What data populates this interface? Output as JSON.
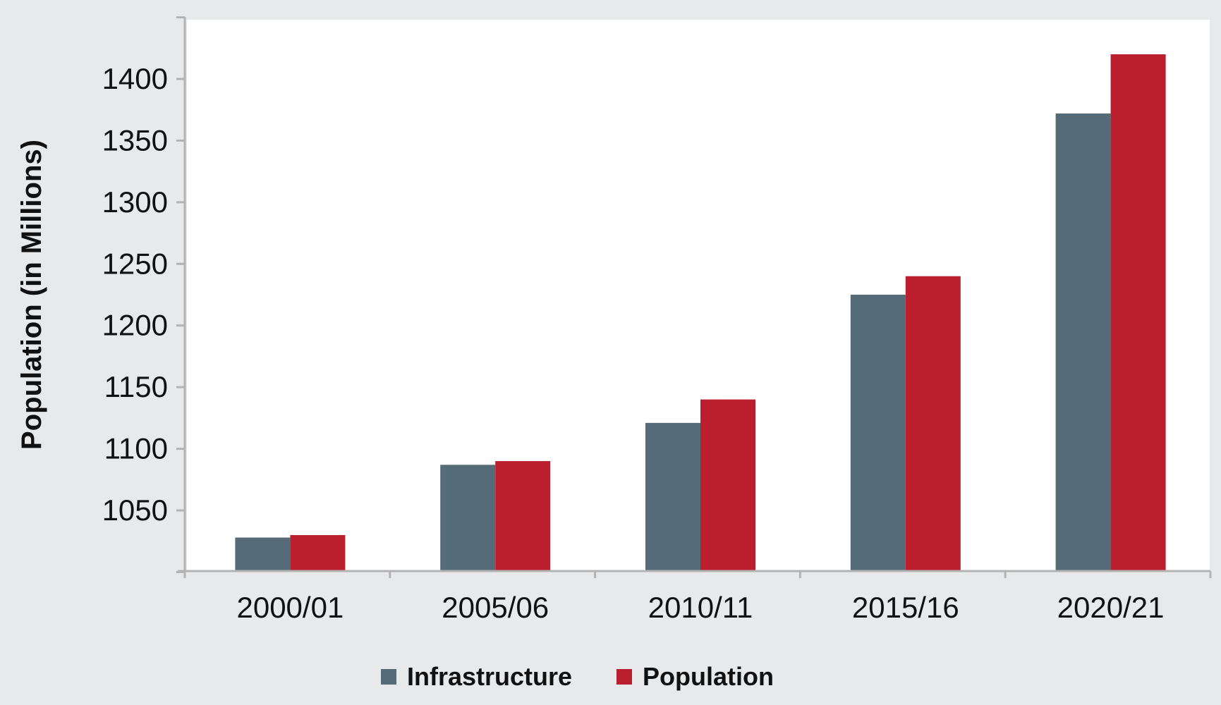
{
  "chart_data": {
    "type": "bar",
    "categories": [
      "2000/01",
      "2005/06",
      "2010/11",
      "2015/16",
      "2020/21"
    ],
    "series": [
      {
        "name": "Infrastructure",
        "values": [
          1028,
          1087,
          1121,
          1225,
          1372
        ],
        "color": "#566b78"
      },
      {
        "name": "Population",
        "values": [
          1030,
          1090,
          1140,
          1240,
          1420
        ],
        "color": "#bb1e2d"
      }
    ],
    "title": "",
    "xlabel": "",
    "ylabel": "Population (in Millions)",
    "ylim": [
      1000,
      1450
    ],
    "yticks": [
      1050,
      1100,
      1150,
      1200,
      1250,
      1300,
      1350,
      1400
    ],
    "legend_position": "bottom-center",
    "grid": false,
    "colors": {
      "background": "#e8e9eb",
      "plot_background": "#ffffff",
      "axis": "#b3b3b3"
    }
  }
}
